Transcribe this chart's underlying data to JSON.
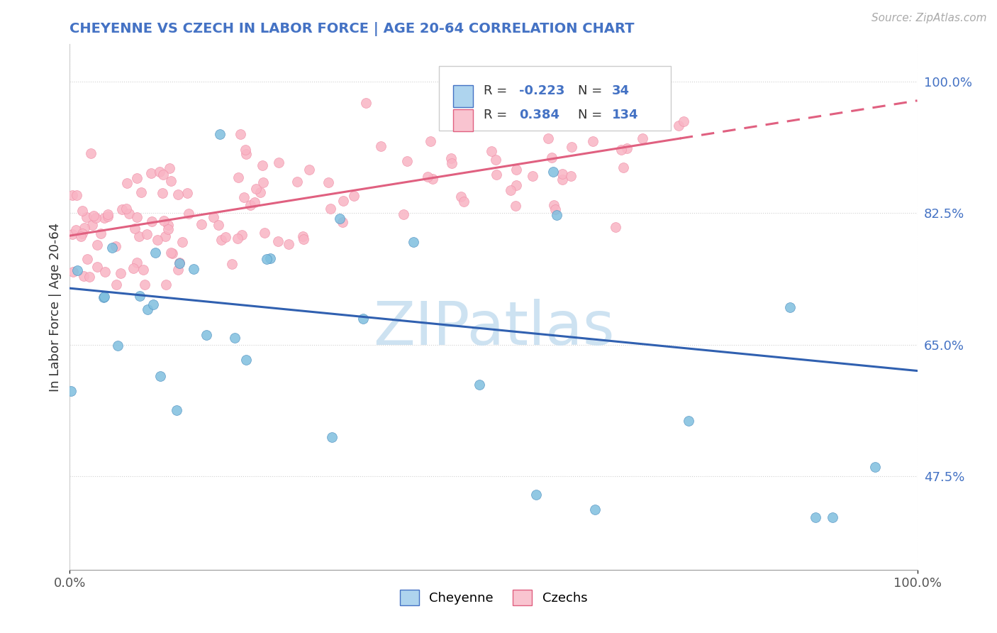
{
  "title": "CHEYENNE VS CZECH IN LABOR FORCE | AGE 20-64 CORRELATION CHART",
  "source_text": "Source: ZipAtlas.com",
  "ylabel": "In Labor Force | Age 20-64",
  "xlim": [
    0.0,
    1.0
  ],
  "ylim": [
    0.35,
    1.05
  ],
  "yticks": [
    0.475,
    0.65,
    0.825,
    1.0
  ],
  "ytick_labels": [
    "47.5%",
    "65.0%",
    "82.5%",
    "100.0%"
  ],
  "cheyenne_color": "#7fbfdf",
  "czech_color": "#f9b4c4",
  "cheyenne_line_color": "#3060b0",
  "czech_line_color": "#e06080",
  "R_cheyenne": -0.223,
  "N_cheyenne": 34,
  "R_czech": 0.384,
  "N_czech": 134,
  "watermark": "ZIPatlas",
  "cheyenne_line_x0": 0.0,
  "cheyenne_line_y0": 0.725,
  "cheyenne_line_x1": 1.0,
  "cheyenne_line_y1": 0.615,
  "czech_line_x0": 0.0,
  "czech_line_y0": 0.795,
  "czech_line_x1": 1.0,
  "czech_line_y1": 0.975,
  "czech_line_solid_end": 0.72
}
